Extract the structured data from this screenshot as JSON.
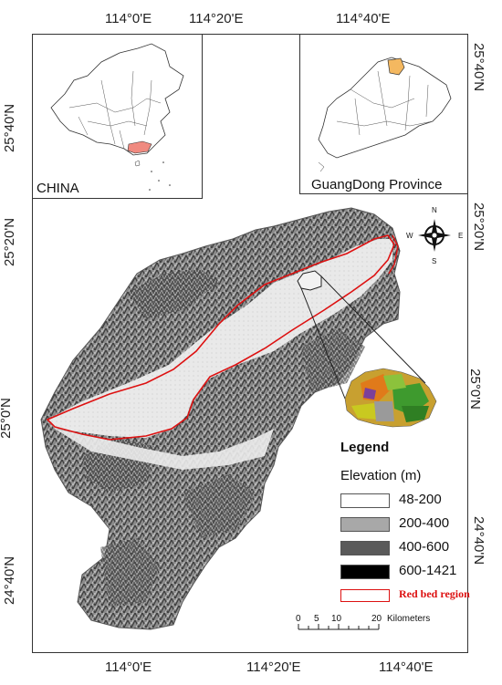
{
  "axes": {
    "top": [
      "114°0'E",
      "114°20'E",
      "114°40'E"
    ],
    "bottom": [
      "114°0'E",
      "114°20'E",
      "114°40'E"
    ],
    "left": [
      "25°40'N",
      "25°20'N",
      "25°0'N",
      "24°40'N"
    ],
    "right": [
      "25°40'N",
      "25°20'N",
      "25°0'N",
      "24°40'N"
    ]
  },
  "insets": {
    "china_label": "CHINA",
    "province_label": "GuangDong Province"
  },
  "compass": {
    "n": "N",
    "s": "S",
    "e": "E",
    "w": "W"
  },
  "legend": {
    "title": "Legend",
    "subtitle": "Elevation (m)",
    "items": [
      {
        "label": "48-200",
        "color": "#ffffff"
      },
      {
        "label": "200-400",
        "color": "#a8a8a8"
      },
      {
        "label": "400-600",
        "color": "#5a5a5a"
      },
      {
        "label": "600-1421",
        "color": "#000000"
      }
    ],
    "red_bed": {
      "label": "Red bed region",
      "color": "#dd1111"
    }
  },
  "scalebar": {
    "ticks": [
      "0",
      "5",
      "10",
      "20"
    ],
    "unit": "Kilometers"
  },
  "colors": {
    "red_bed_outline": "#dd1111",
    "highlight_province": "#f08a80",
    "highlight_city": "#f4b860"
  }
}
